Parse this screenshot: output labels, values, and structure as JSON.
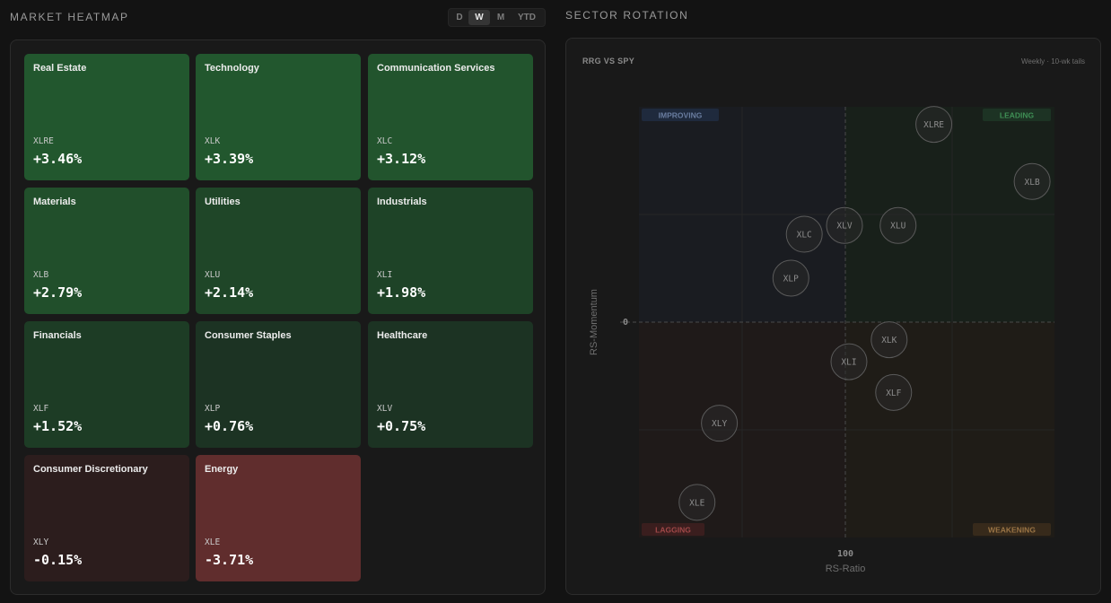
{
  "heatmap": {
    "title": "MARKET HEATMAP",
    "periods": [
      {
        "label": "D",
        "active": false
      },
      {
        "label": "W",
        "active": true
      },
      {
        "label": "M",
        "active": false
      },
      {
        "label": "YTD",
        "active": false
      }
    ],
    "tiles": [
      {
        "name": "Real Estate",
        "symbol": "XLRE",
        "change": "+3.46%",
        "color": "#22572e"
      },
      {
        "name": "Technology",
        "symbol": "XLK",
        "change": "+3.39%",
        "color": "#22572e"
      },
      {
        "name": "Communication Services",
        "symbol": "XLC",
        "change": "+3.12%",
        "color": "#22542d"
      },
      {
        "name": "Materials",
        "symbol": "XLB",
        "change": "+2.79%",
        "color": "#214f2b"
      },
      {
        "name": "Utilities",
        "symbol": "XLU",
        "change": "+2.14%",
        "color": "#1f4628"
      },
      {
        "name": "Industrials",
        "symbol": "XLI",
        "change": "+1.98%",
        "color": "#1e4327"
      },
      {
        "name": "Financials",
        "symbol": "XLF",
        "change": "+1.52%",
        "color": "#1d3c25"
      },
      {
        "name": "Consumer Staples",
        "symbol": "XLP",
        "change": "+0.76%",
        "color": "#1c3323"
      },
      {
        "name": "Healthcare",
        "symbol": "XLV",
        "change": "+0.75%",
        "color": "#1c3323"
      },
      {
        "name": "Consumer Discretionary",
        "symbol": "XLY",
        "change": "-0.15%",
        "color": "#2c1d1d"
      },
      {
        "name": "Energy",
        "symbol": "XLE",
        "change": "-3.71%",
        "color": "#602d2d"
      }
    ]
  },
  "rotation": {
    "title": "SECTOR ROTATION",
    "subtitle": "RRG VS SPY",
    "note": "Weekly · 10-wk tails",
    "quadrants": {
      "improving": "IMPROVING",
      "leading": "LEADING",
      "lagging": "LAGGING",
      "weakening": "WEAKENING"
    },
    "colors": {
      "improving": "#6a7da0",
      "leading": "#3f8f55",
      "lagging": "#a04848",
      "weakening": "#9a7445"
    },
    "x_label": "RS-Ratio",
    "y_label": "RS-Momentum",
    "x_center_tick": "100",
    "y_center_tick": "0"
  },
  "chart_data": {
    "type": "scatter",
    "xlabel": "RS-Ratio",
    "ylabel": "RS-Momentum",
    "x_center": 100,
    "y_center": 0,
    "xlim": [
      95.3,
      104.6
    ],
    "ylim": [
      -4.9,
      4.9
    ],
    "points": [
      {
        "label": "XLRE",
        "x": 101.9,
        "y": 4.5
      },
      {
        "label": "XLB",
        "x": 104.1,
        "y": 3.2
      },
      {
        "label": "XLU",
        "x": 101.1,
        "y": 2.2
      },
      {
        "label": "XLV",
        "x": 99.9,
        "y": 2.2
      },
      {
        "label": "XLC",
        "x": 99.0,
        "y": 2.0
      },
      {
        "label": "XLP",
        "x": 98.7,
        "y": 1.0
      },
      {
        "label": "XLK",
        "x": 100.9,
        "y": -0.4
      },
      {
        "label": "XLI",
        "x": 100.0,
        "y": -0.9
      },
      {
        "label": "XLF",
        "x": 101.0,
        "y": -1.6
      },
      {
        "label": "XLY",
        "x": 97.1,
        "y": -2.3
      },
      {
        "label": "XLE",
        "x": 96.6,
        "y": -4.1
      }
    ]
  }
}
